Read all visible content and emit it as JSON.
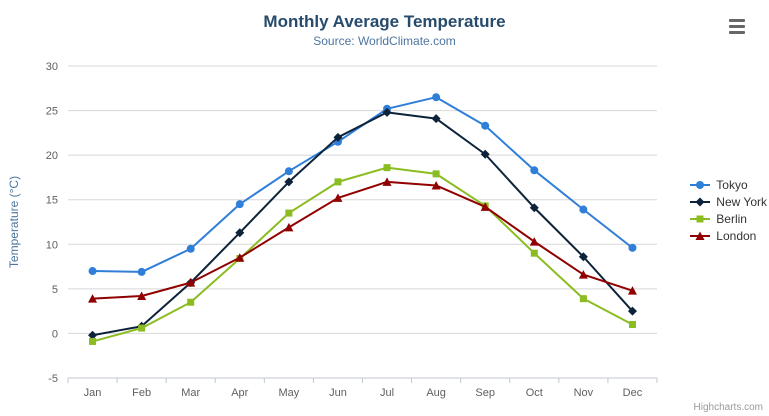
{
  "chart_data": {
    "type": "line",
    "title": "Monthly Average Temperature",
    "subtitle": "Source: WorldClimate.com",
    "categories": [
      "Jan",
      "Feb",
      "Mar",
      "Apr",
      "May",
      "Jun",
      "Jul",
      "Aug",
      "Sep",
      "Oct",
      "Nov",
      "Dec"
    ],
    "xlabel": "",
    "ylabel": "Temperature (°C)",
    "ylim": [
      -5,
      30
    ],
    "ytick_interval": 5,
    "grid": true,
    "legend_position": "right",
    "series": [
      {
        "name": "Tokyo",
        "color": "#2f7ed8",
        "marker": "circle",
        "values": [
          7.0,
          6.9,
          9.5,
          14.5,
          18.2,
          21.5,
          25.2,
          26.5,
          23.3,
          18.3,
          13.9,
          9.6
        ]
      },
      {
        "name": "New York",
        "color": "#0d233a",
        "marker": "diamond",
        "values": [
          -0.2,
          0.8,
          5.7,
          11.3,
          17.0,
          22.0,
          24.8,
          24.1,
          20.1,
          14.1,
          8.6,
          2.5
        ]
      },
      {
        "name": "Berlin",
        "color": "#8bbc21",
        "marker": "square",
        "values": [
          -0.9,
          0.6,
          3.5,
          8.4,
          13.5,
          17.0,
          18.6,
          17.9,
          14.3,
          9.0,
          3.9,
          1.0
        ]
      },
      {
        "name": "London",
        "color": "#910000",
        "marker": "triangle",
        "values": [
          3.9,
          4.2,
          5.7,
          8.5,
          11.9,
          15.2,
          17.0,
          16.6,
          14.2,
          10.3,
          6.6,
          4.8
        ]
      }
    ],
    "axis_label_color": "#606060",
    "axis_title_color": "#4d759e",
    "gridline_color": "#d8d8d8",
    "axis_line_color": "#c0c8d0"
  },
  "credits": "Highcharts.com",
  "menu_icon": "hamburger-icon"
}
